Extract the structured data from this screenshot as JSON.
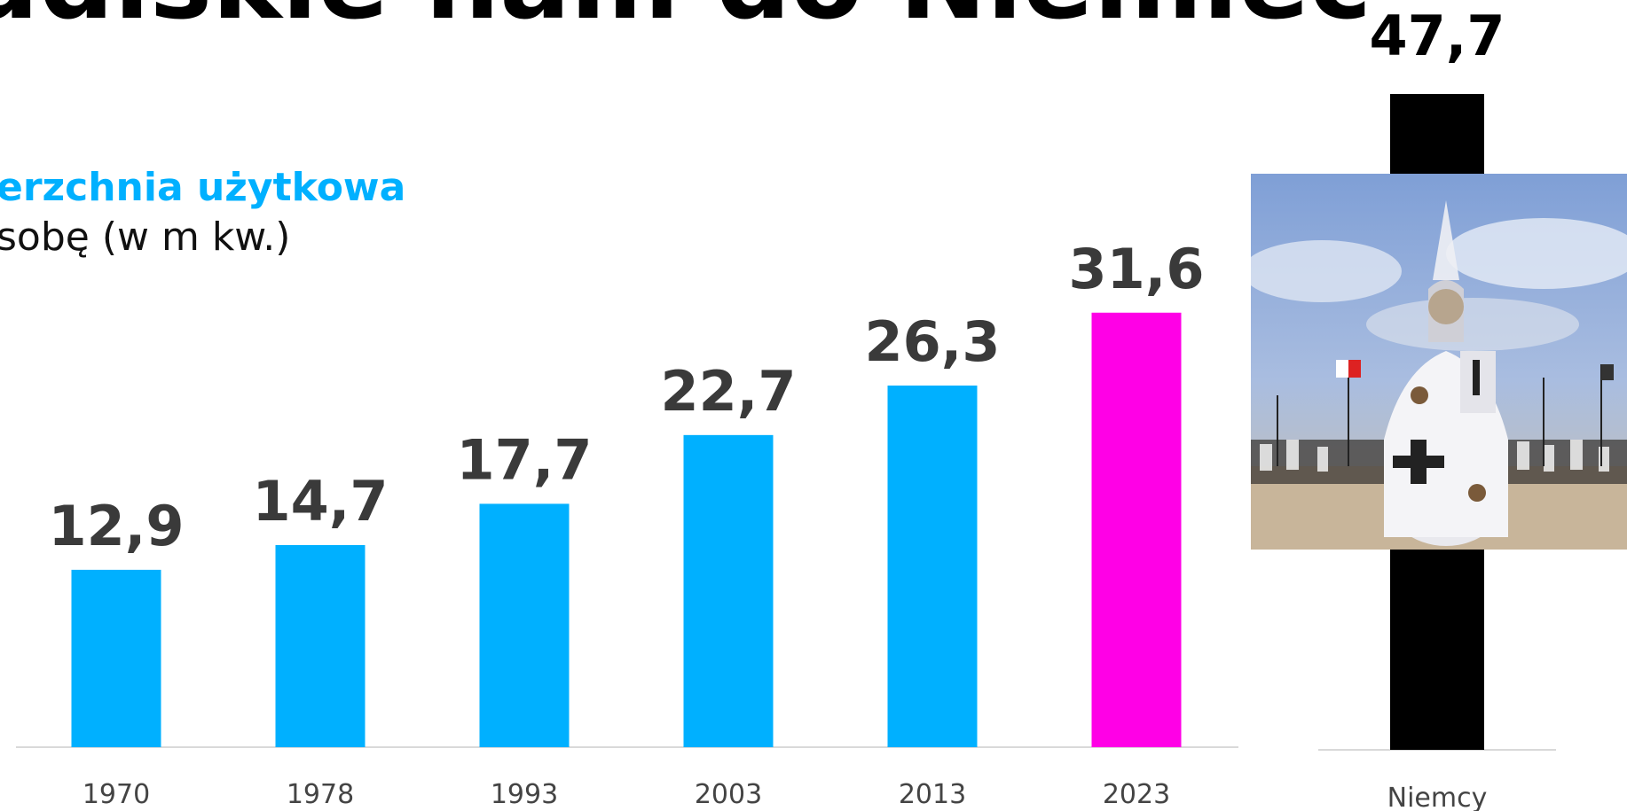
{
  "title": "udiskie ham do Niemiec",
  "subtitle_line1": "erzchnia użytkowa",
  "subtitle_line2": "sobę (w m kw.)",
  "colors": {
    "bar_main": "#00b0ff",
    "bar_highlight": "#ff00e6",
    "bar_compare": "#000000",
    "subtitle_accent": "#00b0ff",
    "baseline": "#d9d9d9"
  },
  "chart_data": [
    {
      "type": "bar",
      "categories": [
        "1970",
        "1978",
        "1993",
        "2003",
        "2013",
        "2023"
      ],
      "values": [
        12.9,
        14.7,
        17.7,
        22.7,
        26.3,
        31.6
      ],
      "data_labels": [
        "12,9",
        "14,7",
        "17,7",
        "22,7",
        "26,3",
        "31,6"
      ],
      "highlight_index": 5,
      "ylim": [
        0,
        47.7
      ]
    },
    {
      "type": "bar",
      "categories": [
        "Niemcy"
      ],
      "values": [
        47.7
      ],
      "data_labels": [
        "47,7"
      ],
      "ylim": [
        0,
        47.7
      ]
    }
  ],
  "image": {
    "icon": "knight-on-horse-photo"
  }
}
